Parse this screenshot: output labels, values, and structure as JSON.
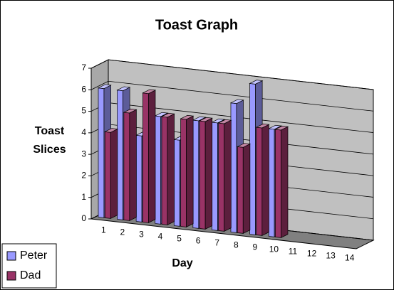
{
  "chart_data": {
    "type": "bar3d",
    "title": "Toast Graph",
    "xlabel": "Day",
    "ylabel": "Toast Slices",
    "categories": [
      "1",
      "2",
      "3",
      "4",
      "5",
      "6",
      "7",
      "8",
      "9",
      "10",
      "11",
      "12",
      "13",
      "14"
    ],
    "series": [
      {
        "name": "Peter",
        "color": "#9999ff",
        "values": [
          6,
          6,
          4,
          5,
          4,
          5,
          5,
          6,
          7,
          5,
          null,
          null,
          null,
          null
        ]
      },
      {
        "name": "Dad",
        "color": "#993366",
        "values": [
          4,
          5,
          6,
          5,
          5,
          5,
          5,
          4,
          5,
          5,
          null,
          null,
          null,
          null
        ]
      }
    ],
    "ylim": [
      0,
      7
    ],
    "yticks": [
      0,
      1,
      2,
      3,
      4,
      5,
      6,
      7
    ],
    "grid": true,
    "legend": "bottom-left"
  }
}
